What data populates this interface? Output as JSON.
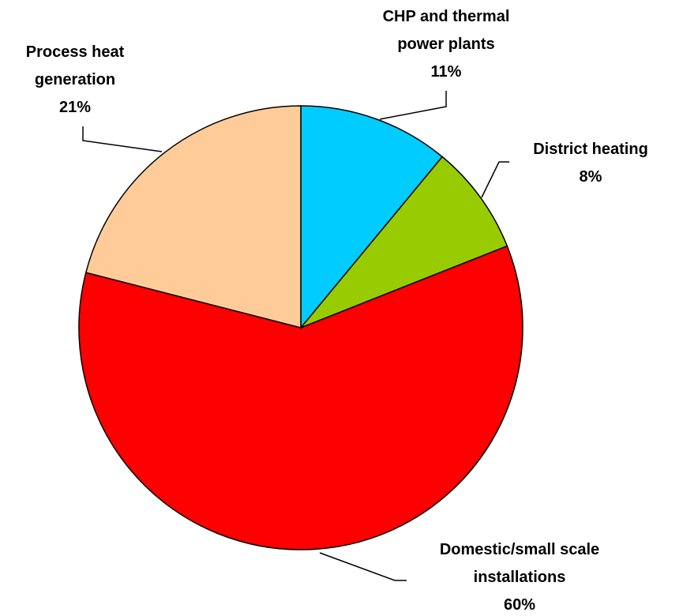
{
  "chart_data": {
    "type": "pie",
    "categories": [
      "CHP and thermal power plants",
      "District heating",
      "Domestic/small scale installations",
      "Process heat generation"
    ],
    "values": [
      11,
      8,
      60,
      21
    ],
    "value_labels": [
      "11%",
      "8%",
      "60%",
      "21%"
    ],
    "colors": [
      "#00ccff",
      "#99cc00",
      "#ff0000",
      "#ffcc99"
    ]
  }
}
